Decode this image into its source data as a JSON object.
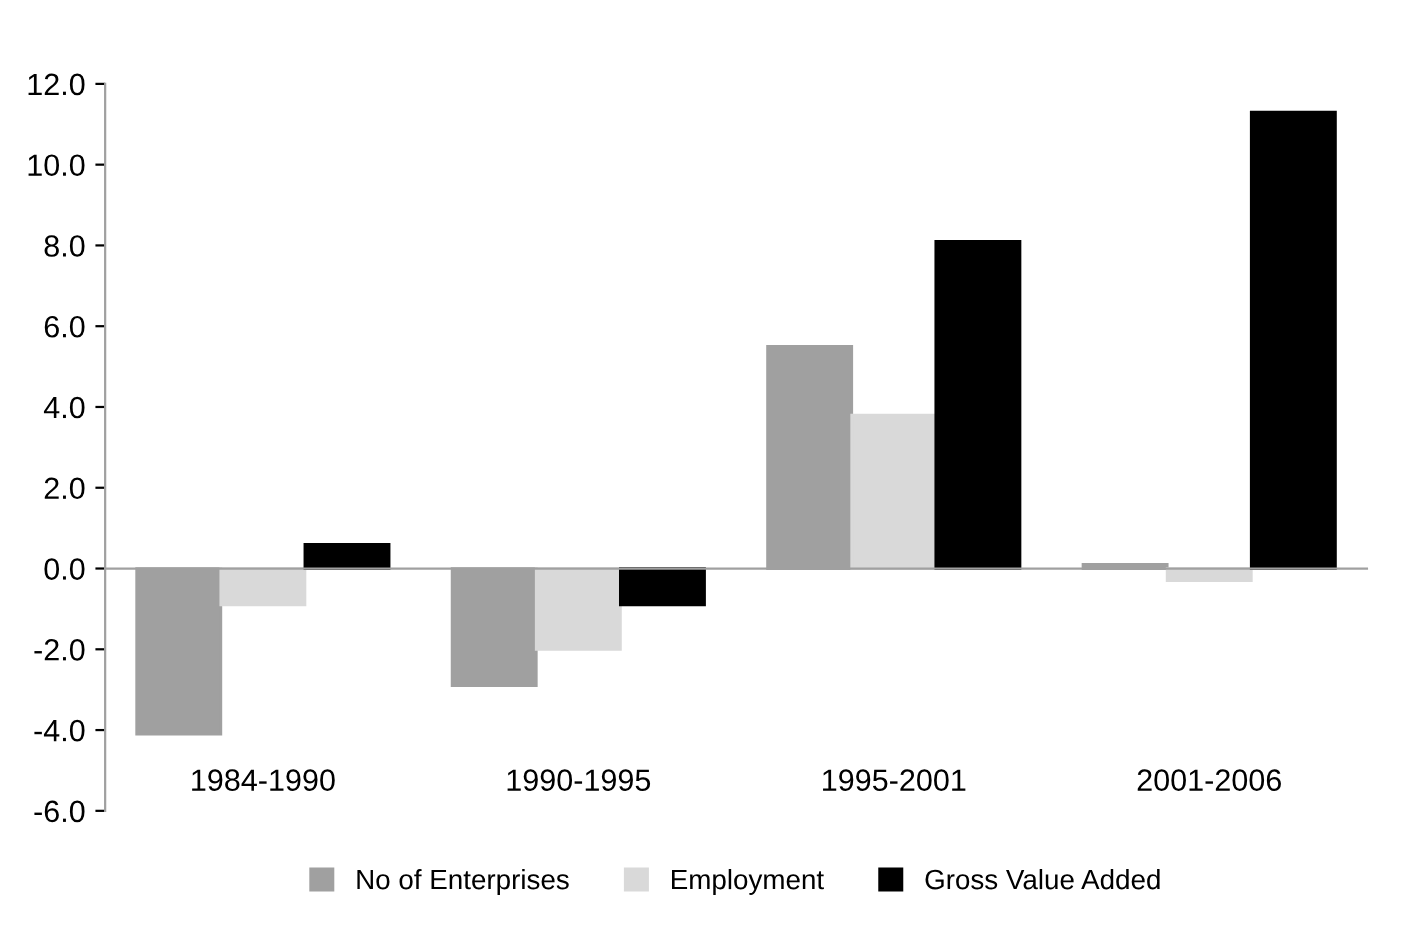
{
  "chart_data": {
    "type": "bar",
    "categories": [
      "1984-1990",
      "1990-1995",
      "1995-2001",
      "2001-2006"
    ],
    "series": [
      {
        "name": "No of Enterprises",
        "color": "#a0a0a0",
        "values": [
          -4.1,
          -2.9,
          5.5,
          0.1
        ]
      },
      {
        "name": "Employment",
        "color": "#d9d9d9",
        "values": [
          -0.9,
          -2.0,
          3.8,
          -0.3
        ]
      },
      {
        "name": "Gross Value Added",
        "color": "#000000",
        "values": [
          0.6,
          -0.9,
          8.1,
          11.3
        ]
      }
    ],
    "ylim": [
      -6,
      12
    ],
    "yticks": [
      {
        "value": -6,
        "label": "-6.0"
      },
      {
        "value": -4,
        "label": "-4.0"
      },
      {
        "value": -2,
        "label": "-2.0"
      },
      {
        "value": 0,
        "label": "0.0"
      },
      {
        "value": 2,
        "label": "2.0"
      },
      {
        "value": 4,
        "label": "4.0"
      },
      {
        "value": 6,
        "label": "6.0"
      },
      {
        "value": 8,
        "label": "8.0"
      },
      {
        "value": 10,
        "label": "10.0"
      },
      {
        "value": 12,
        "label": "12.0"
      }
    ],
    "legend": "bottom"
  }
}
